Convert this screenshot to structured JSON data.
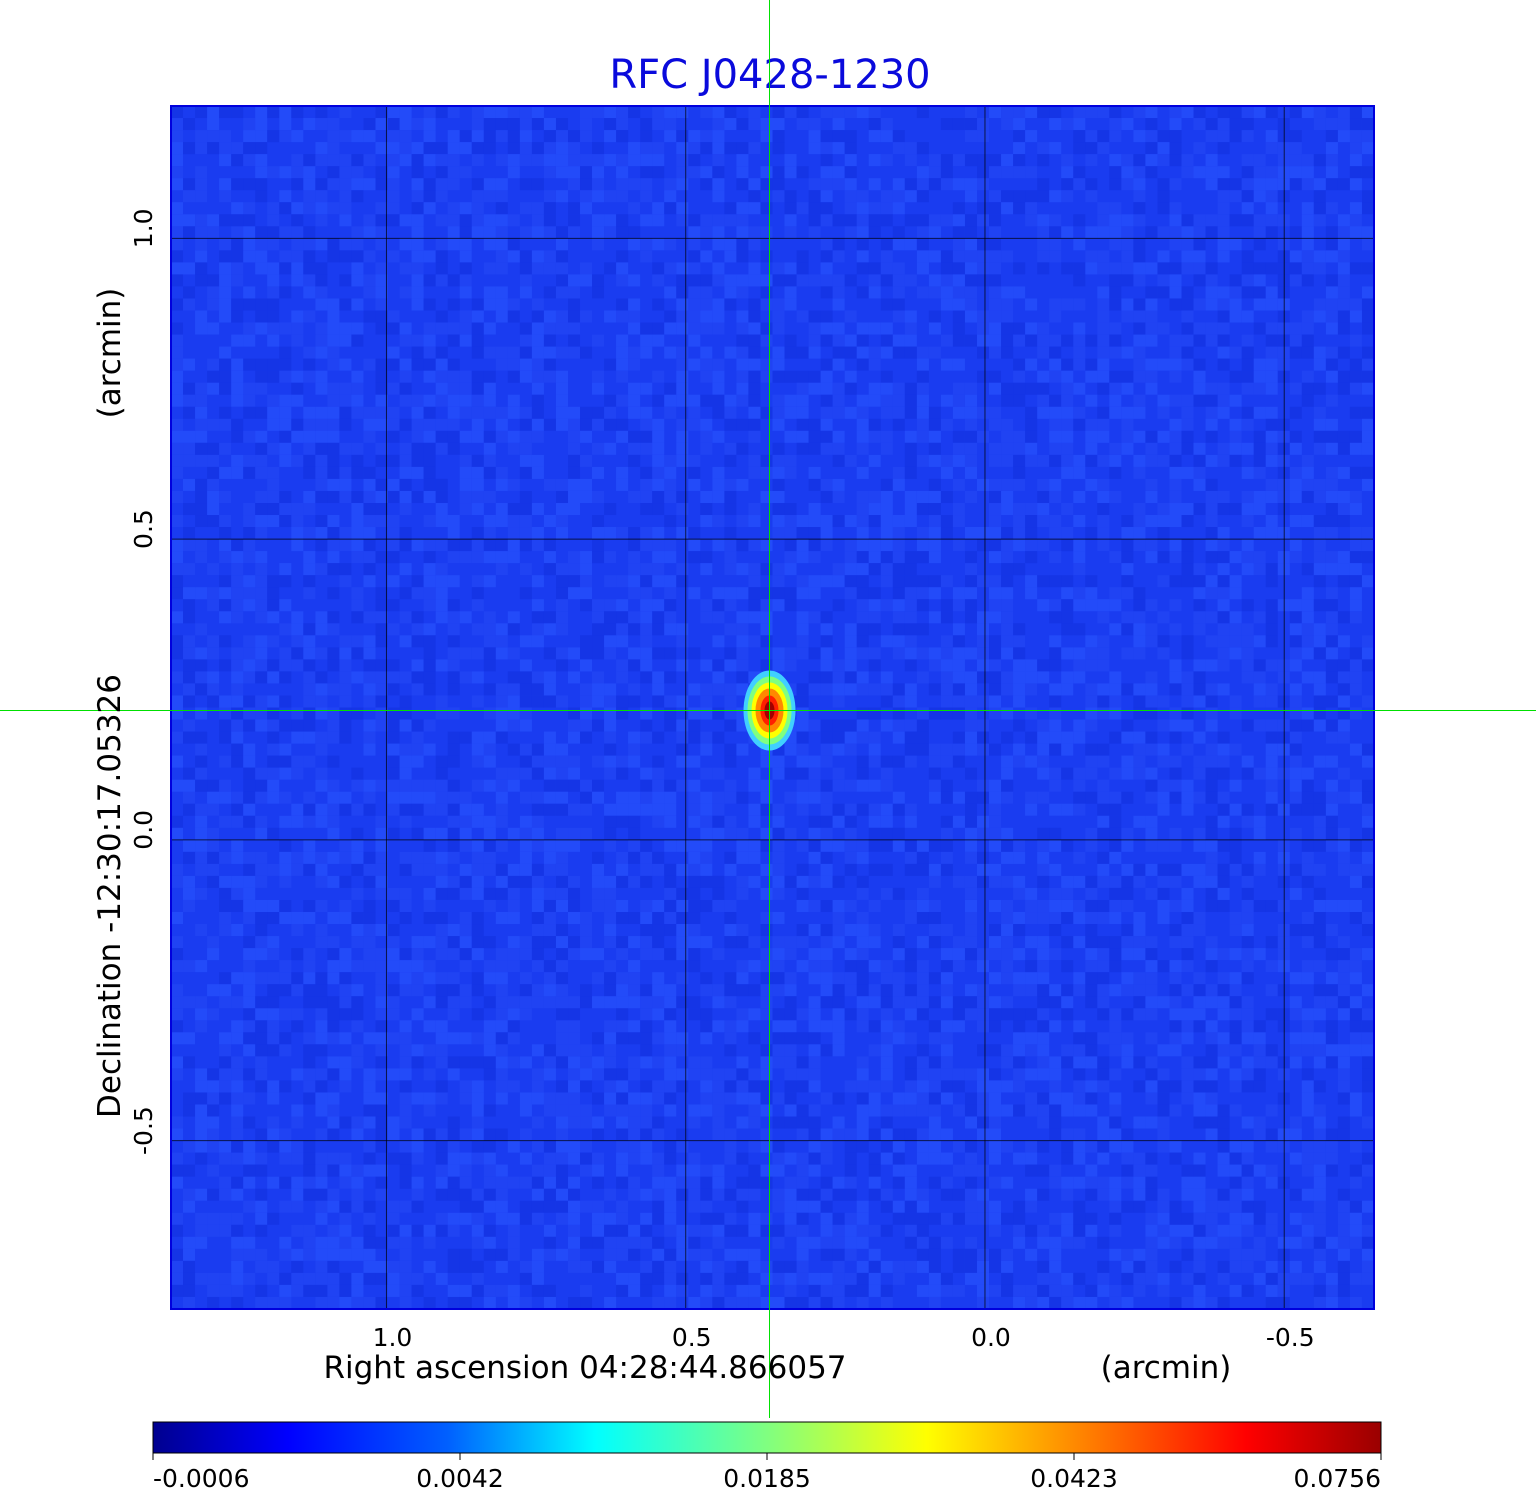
{
  "chart_data": {
    "type": "heatmap",
    "title": "RFC J0428-1230",
    "xlabel": "Right ascension  04:28:44.866057",
    "xunit": "(arcmin)",
    "ylabel": "Declination  -12:30:17.05326",
    "yunit": "(arcmin)",
    "xlim": [
      1.36,
      -0.65
    ],
    "ylim": [
      -0.78,
      1.22
    ],
    "x_ticks": [
      1.0,
      0.5,
      0.0,
      -0.5
    ],
    "x_tick_labels": [
      "1.0",
      "0.5",
      "0.0",
      "-0.5"
    ],
    "y_ticks": [
      1.0,
      0.5,
      0.0,
      -0.5
    ],
    "y_tick_labels": [
      "1.0",
      "0.5",
      "0.0",
      "-0.5"
    ],
    "grid": true,
    "crosshair": {
      "x": 0.36,
      "y": 0.215,
      "color": "#00e000"
    },
    "source_peak": {
      "x": 0.36,
      "y": 0.215,
      "value": 0.0756
    },
    "colormap": "jet",
    "colorbar": {
      "ticks": [
        -0.0006,
        0.0042,
        0.0185,
        0.0423,
        0.0756
      ],
      "tick_labels": [
        "-0.0006",
        "0.0042",
        "0.0185",
        "0.0423",
        "0.0756"
      ],
      "min": -0.0006,
      "max": 0.0756
    }
  },
  "colors": {
    "title": "#0a0adc",
    "background_map": "#1a3cf0",
    "crosshair": "#00e000",
    "grid": "#000000"
  }
}
